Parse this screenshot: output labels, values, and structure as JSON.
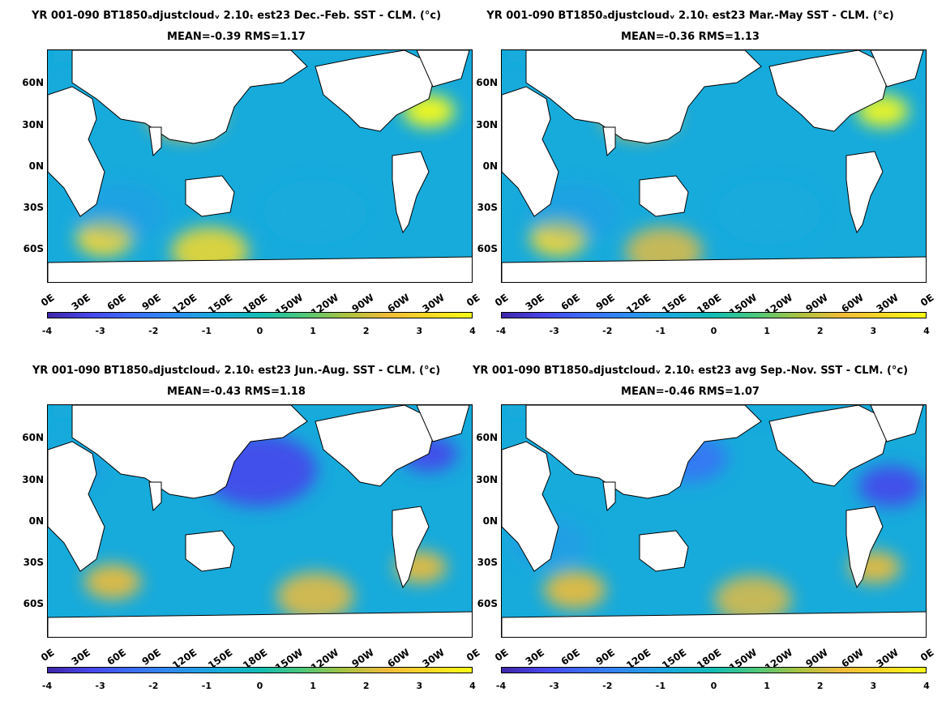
{
  "panels": [
    {
      "title": "YR 001-090 BT1850ₐdjustcloudᵥ 2.10ₜ est23  Dec.-Feb. SST - CLM. (°c)",
      "stats": "MEAN=-0.39   RMS=1.17",
      "season": "Dec.-Feb."
    },
    {
      "title": "YR 001-090 BT1850ₐdjustcloudᵥ 2.10ₜ est23 Mar.-May SST - CLM. (°c)",
      "stats": "MEAN=-0.36   RMS=1.13",
      "season": "Mar.-May"
    },
    {
      "title": "YR 001-090 BT1850ₐdjustcloudᵥ 2.10ₜ est23 Jun.-Aug. SST - CLM. (°c)",
      "stats": "MEAN=-0.43   RMS=1.18",
      "season": "Jun.-Aug."
    },
    {
      "title": "YR 001-090 BT1850ₐdjustcloudᵥ 2.10ₜ est23 avg Sep.-Nov. SST - CLM. (°c)",
      "stats": "MEAN=-0.46   RMS=1.07",
      "season": "Sep.-Nov."
    }
  ],
  "lat_ticks": [
    "60N",
    "30N",
    "0N",
    "30S",
    "60S"
  ],
  "lon_ticks": [
    "0E",
    "30E",
    "60E",
    "90E",
    "120E",
    "150E",
    "180E",
    "150W",
    "120W",
    "90W",
    "60W",
    "30W",
    "0E"
  ],
  "colorbar": {
    "ticks": [
      "-4",
      "-3",
      "-2",
      "-1",
      "0",
      "1",
      "2",
      "3",
      "4"
    ],
    "range": [
      -4,
      4
    ],
    "colors": [
      "#3e26a8",
      "#4746eb",
      "#3b6ef8",
      "#2d8ef1",
      "#17abdc",
      "#11bdb5",
      "#4cc87a",
      "#a8c341",
      "#f0bb39",
      "#fad926",
      "#f9fb15"
    ]
  }
}
